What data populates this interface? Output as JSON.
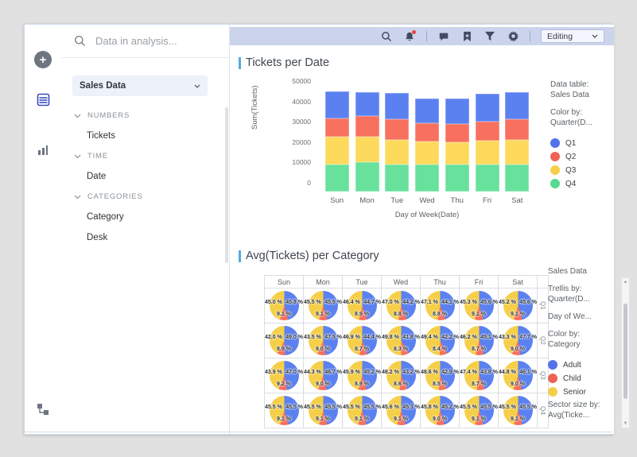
{
  "panel": {
    "search_placeholder": "Data in analysis...",
    "table_selector": "Sales Data",
    "sections": [
      {
        "label": "NUMBERS",
        "items": [
          "Tickets"
        ]
      },
      {
        "label": "TIME",
        "items": [
          "Date"
        ]
      },
      {
        "label": "CATEGORIES",
        "items": [
          "Category",
          "Desk"
        ]
      }
    ]
  },
  "rail": {
    "icons": [
      "add",
      "data-table",
      "visualizations",
      "data-canvas"
    ]
  },
  "toolbar": {
    "icons": [
      "search",
      "notifications",
      "comments",
      "bookmarks",
      "filters",
      "settings"
    ],
    "editing_label": "Editing"
  },
  "legend1": {
    "data_table_label": "Data table:",
    "data_table": "Sales Data",
    "color_by_label": "Color by:",
    "color_by": "Quarter(D...",
    "entries": [
      {
        "label": "Q1",
        "color": "#5472ea"
      },
      {
        "label": "Q2",
        "color": "#ef6355"
      },
      {
        "label": "Q3",
        "color": "#f6cf49"
      },
      {
        "label": "Q4",
        "color": "#55da90"
      }
    ]
  },
  "legend2": {
    "data_table": "Sales Data",
    "trellis_by_label": "Trellis by:",
    "trellis_by": "Quarter(D...",
    "trellis_by2": "Day of We...",
    "color_by_label": "Color by:",
    "color_by": "Category",
    "entries": [
      {
        "label": "Adult",
        "color": "#5472ea"
      },
      {
        "label": "Child",
        "color": "#ef6355"
      },
      {
        "label": "Senior",
        "color": "#f6cf49"
      }
    ],
    "sector_label": "Sector size by:",
    "sector_by": "Avg(Ticke..."
  },
  "chart_data": [
    {
      "type": "bar",
      "stacked": true,
      "title": "Tickets per Date",
      "categories": [
        "Sun",
        "Mon",
        "Tue",
        "Wed",
        "Thu",
        "Fri",
        "Sat"
      ],
      "series": [
        {
          "name": "Q4",
          "color": "#67e19c",
          "values": [
            13200,
            14300,
            13200,
            13200,
            13200,
            13200,
            13200
          ]
        },
        {
          "name": "Q3",
          "color": "#fdd95c",
          "values": [
            13600,
            12500,
            12200,
            11300,
            11200,
            11800,
            12400
          ]
        },
        {
          "name": "Q2",
          "color": "#f8705e",
          "values": [
            9200,
            10200,
            10200,
            9000,
            8800,
            9200,
            10100
          ]
        },
        {
          "name": "Q1",
          "color": "#5b81f0",
          "values": [
            13200,
            11900,
            12700,
            12300,
            12600,
            14000,
            13200
          ]
        }
      ],
      "xlabel": "Day of Week(Date)",
      "ylabel": "Sum(Tickets)",
      "ylim": [
        0,
        50000
      ],
      "yticks": [
        0,
        10000,
        20000,
        30000,
        40000,
        50000
      ]
    },
    {
      "type": "pie-trellis",
      "title": "Avg(Tickets) per Category",
      "columns": [
        "Sun",
        "Mon",
        "Tue",
        "Wed",
        "Thu",
        "Fri",
        "Sat"
      ],
      "colors": {
        "adult": "#5b81f0",
        "child": "#f8705e",
        "senior": "#f6cf49"
      },
      "rows": [
        {
          "label": "Q1",
          "pies": [
            {
              "senior": 45.0,
              "adult": 45.8,
              "child": 9.1
            },
            {
              "senior": 45.5,
              "adult": 45.5,
              "child": 9.1
            },
            {
              "senior": 46.4,
              "adult": 44.7,
              "child": 8.9
            },
            {
              "senior": 47.0,
              "adult": 44.2,
              "child": 8.8
            },
            {
              "senior": 47.1,
              "adult": 44.1,
              "child": 8.8
            },
            {
              "senior": 45.3,
              "adult": 45.6,
              "child": 9.1
            },
            {
              "senior": 45.2,
              "adult": 45.6,
              "child": 9.1
            }
          ]
        },
        {
          "label": "Q2",
          "pies": [
            {
              "senior": 42.0,
              "adult": 49.0,
              "child": 8.9
            },
            {
              "senior": 43.5,
              "adult": 47.5,
              "child": 9.0
            },
            {
              "senior": 46.9,
              "adult": 44.4,
              "child": 8.7
            },
            {
              "senior": 49.8,
              "adult": 41.8,
              "child": 8.3
            },
            {
              "senior": 49.4,
              "adult": 42.2,
              "child": 8.4
            },
            {
              "senior": 46.2,
              "adult": 45.1,
              "child": 8.7
            },
            {
              "senior": 43.3,
              "adult": 47.7,
              "child": 9.0
            }
          ]
        },
        {
          "label": "Q3",
          "pies": [
            {
              "senior": 43.9,
              "adult": 47.0,
              "child": 9.2
            },
            {
              "senior": 44.3,
              "adult": 46.7,
              "child": 9.0
            },
            {
              "senior": 45.9,
              "adult": 45.2,
              "child": 8.9
            },
            {
              "senior": 48.2,
              "adult": 43.2,
              "child": 8.6
            },
            {
              "senior": 48.6,
              "adult": 42.9,
              "child": 8.5
            },
            {
              "senior": 47.4,
              "adult": 43.8,
              "child": 8.7
            },
            {
              "senior": 44.8,
              "adult": 46.1,
              "child": 9.0
            }
          ]
        },
        {
          "label": "Q4",
          "pies": [
            {
              "senior": 45.5,
              "adult": 45.5,
              "child": 9.1
            },
            {
              "senior": 45.5,
              "adult": 45.5,
              "child": 9.1
            },
            {
              "senior": 45.5,
              "adult": 45.5,
              "child": 9.1
            },
            {
              "senior": 45.6,
              "adult": 45.3,
              "child": 9.1
            },
            {
              "senior": 45.8,
              "adult": 45.2,
              "child": 9.0
            },
            {
              "senior": 45.5,
              "adult": 45.5,
              "child": 9.1
            },
            {
              "senior": 45.5,
              "adult": 45.5,
              "child": 9.1
            }
          ]
        }
      ]
    }
  ]
}
